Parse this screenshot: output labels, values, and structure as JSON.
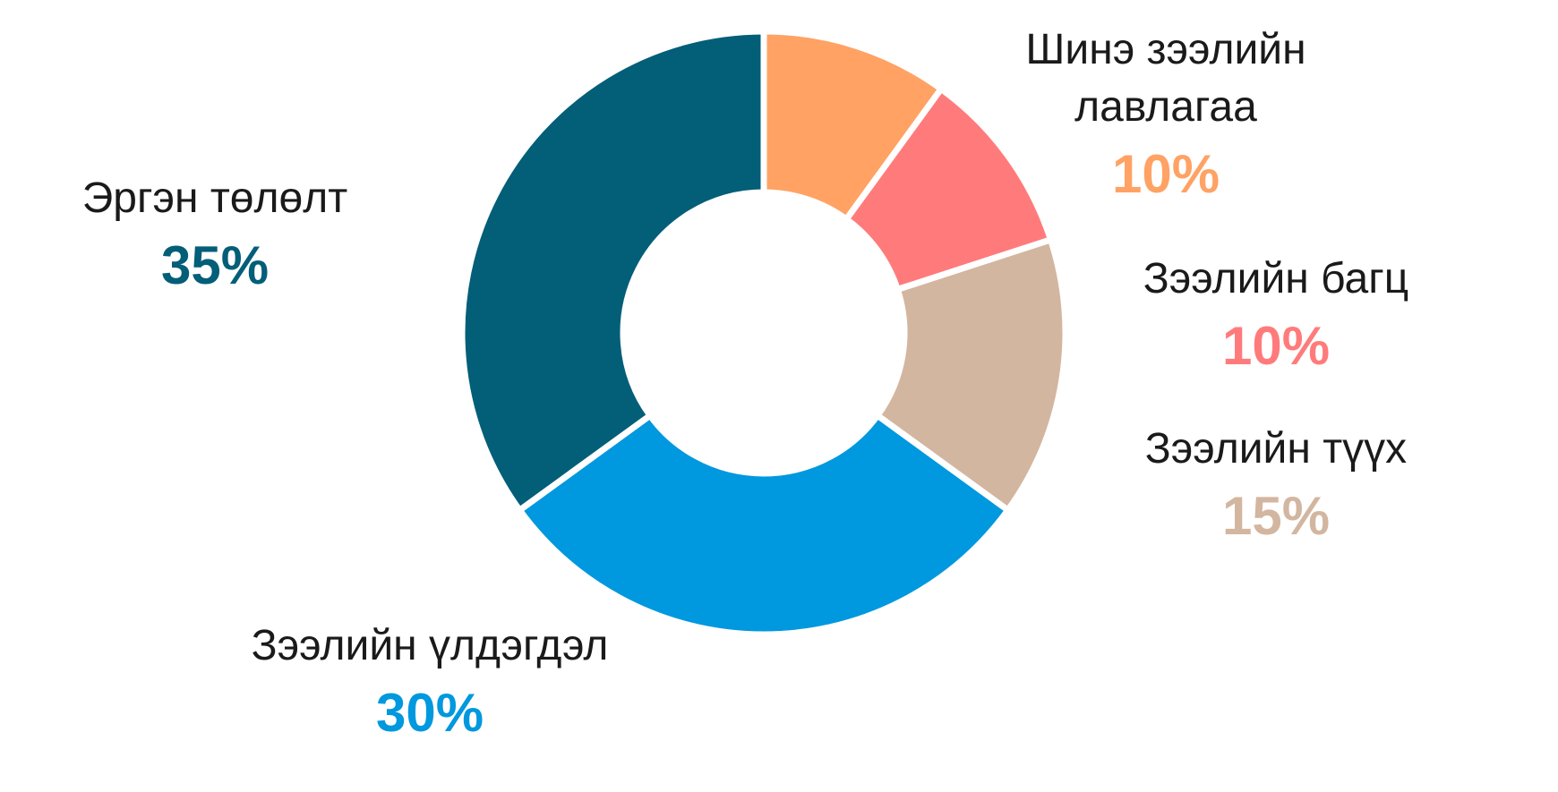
{
  "chart_data": {
    "type": "pie",
    "donut": true,
    "slices": [
      {
        "label": "Шинэ зээлийн лавлагаа",
        "label_lines": [
          "Шинэ зээлийн",
          "лавлагаа"
        ],
        "value": 10,
        "display": "10%",
        "color": "#FFA264"
      },
      {
        "label": "Зээлийн багц",
        "label_lines": [
          "Зээлийн багц"
        ],
        "value": 10,
        "display": "10%",
        "color": "#FF7B7B"
      },
      {
        "label": "Зээлийн түүх",
        "label_lines": [
          "Зээлийн түүх"
        ],
        "value": 15,
        "display": "15%",
        "color": "#D3B6A0"
      },
      {
        "label": "Зээлийн үлдэгдэл",
        "label_lines": [
          "Зээлийн үлдэгдэл"
        ],
        "value": 30,
        "display": "30%",
        "color": "#0098DE"
      },
      {
        "label": "Эргэн төлөлт",
        "label_lines": [
          "Эргэн төлөлт"
        ],
        "value": 35,
        "display": "35%",
        "color": "#035E78"
      }
    ]
  }
}
